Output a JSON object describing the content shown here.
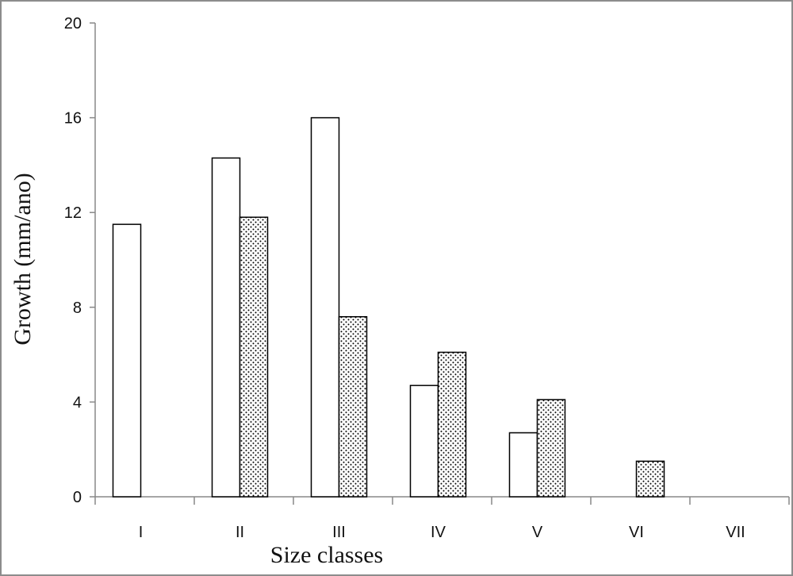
{
  "chart_data": {
    "type": "bar",
    "title": "",
    "xlabel": "Size classes",
    "ylabel": "Growth (mm/ano)",
    "ylim": [
      0,
      20
    ],
    "yticks": [
      "0",
      "4",
      "8",
      "12",
      "16",
      "20"
    ],
    "categories": [
      "I",
      "II",
      "III",
      "IV",
      "V",
      "VI",
      "VII"
    ],
    "series": [
      {
        "values": [
          11.5,
          14.3,
          16.0,
          4.7,
          2.7,
          null,
          null
        ],
        "fill": "#ffffff"
      },
      {
        "values": [
          null,
          11.8,
          7.6,
          6.1,
          4.1,
          1.5,
          null
        ],
        "fill": "dotted"
      }
    ],
    "grid": false,
    "legend": "none"
  }
}
